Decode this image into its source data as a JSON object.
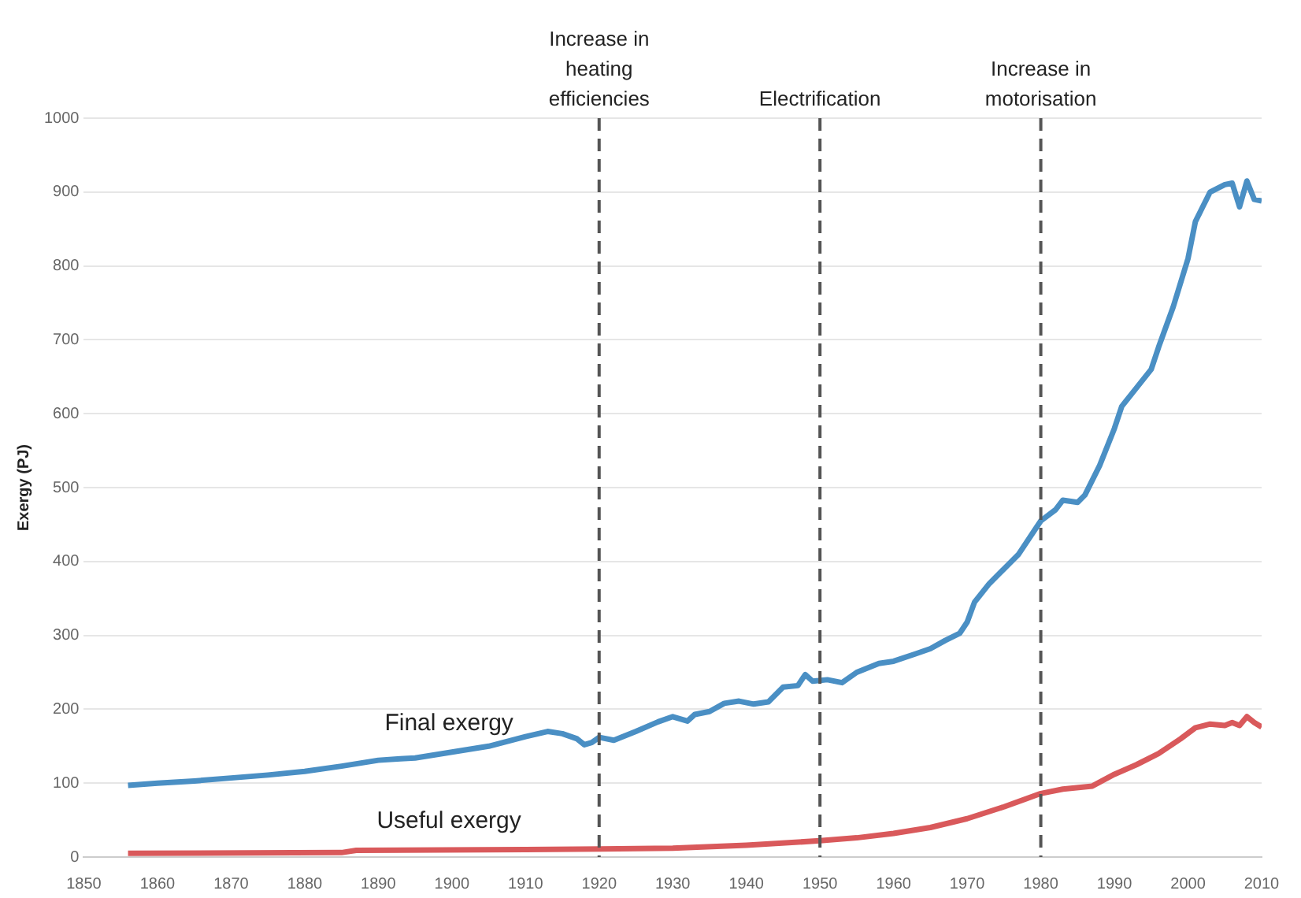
{
  "chart_data": {
    "type": "line",
    "ylabel": "Exergy (PJ)",
    "xlim": [
      1850,
      2010
    ],
    "xticks": [
      1850,
      1860,
      1870,
      1880,
      1890,
      1900,
      1910,
      1920,
      1930,
      1940,
      1950,
      1960,
      1970,
      1980,
      1990,
      2000,
      2010
    ],
    "ylim": [
      0,
      1000
    ],
    "yticks": [
      0,
      100,
      200,
      300,
      400,
      500,
      600,
      700,
      800,
      900,
      1000
    ],
    "grid": "y",
    "legend": false,
    "marker": "none",
    "line_style": "solid",
    "series": [
      {
        "name": "Final exergy",
        "color": "#4a8fc4",
        "x": [
          1856,
          1860,
          1865,
          1870,
          1875,
          1880,
          1885,
          1890,
          1893,
          1895,
          1900,
          1905,
          1910,
          1913,
          1915,
          1917,
          1918,
          1919,
          1920,
          1922,
          1925,
          1928,
          1930,
          1932,
          1933,
          1935,
          1937,
          1939,
          1941,
          1943,
          1945,
          1947,
          1948,
          1949,
          1951,
          1953,
          1955,
          1958,
          1960,
          1963,
          1965,
          1967,
          1969,
          1970,
          1971,
          1973,
          1975,
          1977,
          1979,
          1980,
          1982,
          1983,
          1985,
          1986,
          1988,
          1990,
          1991,
          1993,
          1995,
          1996,
          1998,
          2000,
          2001,
          2002,
          2003,
          2004,
          2005,
          2006,
          2007,
          2008,
          2009,
          2010
        ],
        "values": [
          97,
          100,
          103,
          107,
          111,
          116,
          123,
          131,
          133,
          134,
          142,
          150,
          163,
          170,
          167,
          160,
          152,
          155,
          162,
          158,
          170,
          183,
          190,
          184,
          193,
          197,
          208,
          211,
          207,
          210,
          230,
          232,
          247,
          238,
          240,
          236,
          250,
          262,
          265,
          275,
          282,
          293,
          303,
          318,
          345,
          370,
          390,
          410,
          440,
          455,
          470,
          483,
          480,
          490,
          530,
          580,
          610,
          635,
          660,
          690,
          745,
          810,
          860,
          880,
          900,
          905,
          910,
          912,
          880,
          915,
          890,
          888
        ]
      },
      {
        "name": "Useful exergy",
        "color": "#d9595b",
        "x": [
          1856,
          1885,
          1887,
          1910,
          1930,
          1940,
          1950,
          1955,
          1960,
          1965,
          1970,
          1975,
          1980,
          1983,
          1987,
          1990,
          1993,
          1996,
          1999,
          2001,
          2003,
          2005,
          2006,
          2007,
          2008,
          2009,
          2010
        ],
        "values": [
          5,
          6,
          9,
          10,
          12,
          16,
          22,
          26,
          32,
          40,
          52,
          68,
          86,
          92,
          96,
          112,
          125,
          140,
          160,
          175,
          180,
          178,
          182,
          178,
          190,
          182,
          176
        ]
      }
    ],
    "ref_lines": [
      {
        "axis": "x",
        "value": 1920,
        "label": "Increase in\nheating\nefficiencies",
        "color": "#555555",
        "line_style": "dashed"
      },
      {
        "axis": "x",
        "value": 1950,
        "label": "Electrification",
        "color": "#555555",
        "line_style": "dashed"
      },
      {
        "axis": "x",
        "value": 1980,
        "label": "Increase in\nmotorisation",
        "color": "#555555",
        "line_style": "dashed"
      }
    ]
  }
}
